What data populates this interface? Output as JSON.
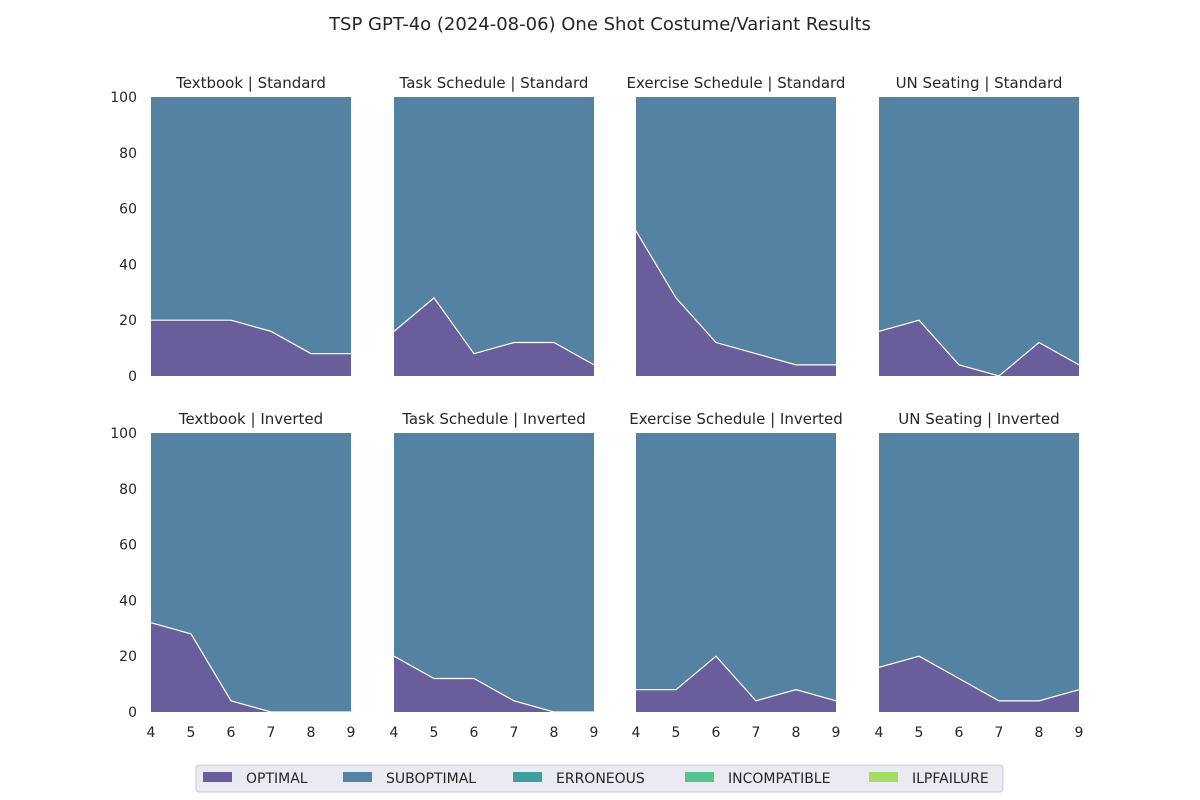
{
  "chart_data": {
    "type": "area",
    "title": "TSP GPT-4o (2024-08-06) One Shot Costume/Variant Results",
    "stacked": true,
    "ylim": [
      0,
      100
    ],
    "yticks": [
      "0",
      "20",
      "40",
      "60",
      "80",
      "100"
    ],
    "x": [
      4,
      5,
      6,
      7,
      8,
      9
    ],
    "xticks": [
      "4",
      "5",
      "6",
      "7",
      "8",
      "9"
    ],
    "grid": false,
    "legend_placement": "bottom-center",
    "legend": [
      {
        "name": "OPTIMAL",
        "color": "#6a5d9b"
      },
      {
        "name": "SUBOPTIMAL",
        "color": "#5382a2"
      },
      {
        "name": "ERRONEOUS",
        "color": "#3f9e9e"
      },
      {
        "name": "INCOMPATIBLE",
        "color": "#54c38e"
      },
      {
        "name": "ILPFAILURE",
        "color": "#a2dc63"
      }
    ],
    "panels": [
      {
        "title": "Textbook | Standard",
        "optimal": [
          20,
          20,
          20,
          16,
          8,
          8
        ]
      },
      {
        "title": "Task Schedule | Standard",
        "optimal": [
          16,
          28,
          8,
          12,
          12,
          4
        ]
      },
      {
        "title": "Exercise Schedule | Standard",
        "optimal": [
          52,
          28,
          12,
          8,
          4,
          4
        ]
      },
      {
        "title": "UN Seating | Standard",
        "optimal": [
          16,
          20,
          4,
          0,
          12,
          4
        ]
      },
      {
        "title": "Textbook | Inverted",
        "optimal": [
          32,
          28,
          4,
          0,
          0,
          0
        ]
      },
      {
        "title": "Task Schedule | Inverted",
        "optimal": [
          20,
          12,
          12,
          4,
          0,
          0
        ]
      },
      {
        "title": "Exercise Schedule | Inverted",
        "optimal": [
          8,
          8,
          20,
          4,
          8,
          4
        ]
      },
      {
        "title": "UN Seating | Inverted",
        "optimal": [
          16,
          20,
          12,
          4,
          4,
          8
        ]
      }
    ]
  }
}
